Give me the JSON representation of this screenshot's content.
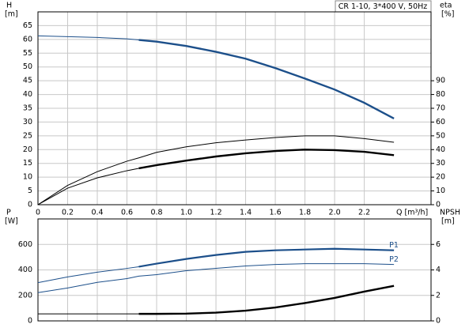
{
  "chart_data": [
    {
      "type": "line",
      "annotation": "CR 1-10, 3*400 V, 50Hz",
      "ylabel": "H",
      "yunit": "[m]",
      "y2label": "eta",
      "y2unit": "[%]",
      "xlabel": "Q [m³/h]",
      "x": [
        0,
        0.2,
        0.4,
        0.6,
        0.68,
        0.8,
        1.0,
        1.2,
        1.4,
        1.6,
        1.8,
        2.0,
        2.2,
        2.4
      ],
      "xlim": [
        0,
        2.65
      ],
      "xticks": [
        0,
        0.2,
        0.4,
        0.6,
        0.8,
        {
          "value": 1,
          "label": "1.0"
        },
        1.2,
        1.4,
        1.6,
        1.8,
        {
          "value": 2,
          "label": "2.0"
        },
        2.2
      ],
      "show_xtick_labels": true,
      "ylim": [
        0,
        70
      ],
      "yticks": [
        0,
        5,
        10,
        15,
        20,
        25,
        30,
        35,
        40,
        45,
        50,
        55,
        60,
        65
      ],
      "y2lim": [
        0,
        140
      ],
      "y2ticks": [
        0,
        10,
        20,
        30,
        40,
        50,
        60,
        70,
        80,
        90
      ],
      "grid": true,
      "series": [
        {
          "color": "#1c4f8a",
          "width": 1,
          "values": [
            61.3,
            61.0,
            60.7,
            60.2,
            59.8,
            null,
            null,
            null,
            null,
            null,
            null,
            null,
            null,
            null
          ]
        },
        {
          "color": "#1c4f8a",
          "width": 2.4,
          "values": [
            null,
            null,
            null,
            null,
            59.8,
            59.2,
            57.6,
            55.5,
            53.0,
            49.6,
            45.8,
            41.8,
            37.0,
            31.3
          ]
        },
        {
          "color": "#000000",
          "width": 1,
          "axis": "y2",
          "values": [
            0,
            14,
            24,
            31.6,
            34,
            38,
            42,
            45,
            47,
            48.8,
            50,
            50,
            48,
            45.3
          ]
        },
        {
          "color": "#000000",
          "width": 1,
          "axis": "y2",
          "values": [
            0,
            12,
            19.5,
            24.7,
            26.4,
            null,
            null,
            null,
            null,
            null,
            null,
            null,
            null,
            null
          ]
        },
        {
          "color": "#000000",
          "width": 2.4,
          "axis": "y2",
          "values": [
            null,
            null,
            null,
            null,
            26.4,
            28.7,
            32,
            35,
            37.3,
            39,
            40,
            39.6,
            38.4,
            36
          ]
        }
      ]
    },
    {
      "type": "line",
      "ylabel": "P",
      "yunit": "[W]",
      "y2label": "NPSH",
      "y2unit": "[m]",
      "x": [
        0,
        0.2,
        0.4,
        0.6,
        0.68,
        0.8,
        1.0,
        1.2,
        1.4,
        1.6,
        1.8,
        2.0,
        2.2,
        2.4
      ],
      "xlim": [
        0,
        2.65
      ],
      "xticks": [
        0,
        0.2,
        0.4,
        0.6,
        0.8,
        1,
        1.2,
        1.4,
        1.6,
        1.8,
        2,
        2.2
      ],
      "show_xtick_labels": false,
      "ylim": [
        0,
        800
      ],
      "yticks": [
        0,
        200,
        400,
        600
      ],
      "y2lim": [
        0,
        8
      ],
      "y2ticks": [
        0,
        2,
        4,
        6
      ],
      "grid": true,
      "series": [
        {
          "color": "#1c4f8a",
          "width": 1,
          "values": [
            300,
            345,
            382,
            412,
            425,
            null,
            null,
            null,
            null,
            null,
            null,
            null,
            null,
            null
          ]
        },
        {
          "name": "P1",
          "color": "#1c4f8a",
          "width": 2.2,
          "values": [
            null,
            null,
            null,
            null,
            425,
            449,
            486,
            517,
            542,
            554,
            560,
            566,
            560,
            554
          ]
        },
        {
          "name": "P2",
          "color": "#1c4f8a",
          "width": 1,
          "values": [
            222,
            258,
            302,
            332,
            351,
            363,
            394,
            412,
            431,
            443,
            449,
            449,
            449,
            443
          ]
        },
        {
          "color": "#000000",
          "width": 1,
          "axis": "y2",
          "values": [
            0.55,
            0.55,
            0.55,
            0.55,
            0.55,
            null,
            null,
            null,
            null,
            null,
            null,
            null,
            null,
            null
          ]
        },
        {
          "color": "#000000",
          "width": 2.4,
          "axis": "y2",
          "values": [
            null,
            null,
            null,
            null,
            0.55,
            0.55,
            0.57,
            0.65,
            0.8,
            1.05,
            1.4,
            1.8,
            2.3,
            2.75
          ]
        }
      ]
    }
  ]
}
